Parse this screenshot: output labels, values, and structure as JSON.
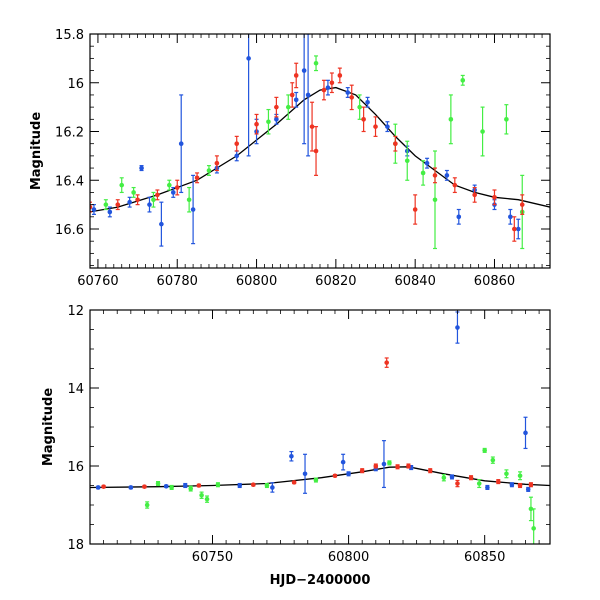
{
  "chart_data": [
    {
      "type": "scatter",
      "panel": "top",
      "xlabel": "",
      "ylabel": "Magnitude",
      "xlim": [
        60758,
        60874
      ],
      "ylim": [
        16.76,
        15.8
      ],
      "y_inverted": true,
      "x_ticks": [
        60760,
        60780,
        60800,
        60820,
        60840,
        60860
      ],
      "y_ticks": [
        15.8,
        16,
        16.2,
        16.4,
        16.6
      ],
      "grid": false,
      "legend": "none",
      "model_curve": {
        "color": "#000000",
        "x": [
          60758,
          60765,
          60775,
          60785,
          60795,
          60805,
          60812,
          60816,
          60820,
          60825,
          60830,
          60835,
          60840,
          60845,
          60850,
          60855,
          60860,
          60866,
          60874
        ],
        "y": [
          16.53,
          16.51,
          16.46,
          16.4,
          16.3,
          16.17,
          16.07,
          16.03,
          16.02,
          16.05,
          16.13,
          16.22,
          16.3,
          16.36,
          16.42,
          16.45,
          16.47,
          16.48,
          16.51
        ]
      },
      "series": [
        {
          "color": "#2255dd",
          "points": [
            {
              "x": 60759,
              "y": 16.52,
              "e": 0.02
            },
            {
              "x": 60763,
              "y": 16.53,
              "e": 0.02
            },
            {
              "x": 60768,
              "y": 16.49,
              "e": 0.02
            },
            {
              "x": 60771,
              "y": 16.35,
              "e": 0.01
            },
            {
              "x": 60773,
              "y": 16.5,
              "e": 0.03
            },
            {
              "x": 60776,
              "y": 16.58,
              "e": 0.09
            },
            {
              "x": 60779,
              "y": 16.45,
              "e": 0.02
            },
            {
              "x": 60781,
              "y": 16.25,
              "e": 0.2
            },
            {
              "x": 60784,
              "y": 16.52,
              "e": 0.14
            },
            {
              "x": 60790,
              "y": 16.35,
              "e": 0.02
            },
            {
              "x": 60795,
              "y": 16.3,
              "e": 0.02
            },
            {
              "x": 60798,
              "y": 15.9,
              "e": 0.4
            },
            {
              "x": 60800,
              "y": 16.2,
              "e": 0.05
            },
            {
              "x": 60805,
              "y": 16.15,
              "e": 0.02
            },
            {
              "x": 60810,
              "y": 16.07,
              "e": 0.03
            },
            {
              "x": 60812,
              "y": 15.95,
              "e": 0.3
            },
            {
              "x": 60813,
              "y": 16.05,
              "e": 0.25
            },
            {
              "x": 60818,
              "y": 16.02,
              "e": 0.03
            },
            {
              "x": 60823,
              "y": 16.04,
              "e": 0.02
            },
            {
              "x": 60828,
              "y": 16.08,
              "e": 0.02
            },
            {
              "x": 60833,
              "y": 16.18,
              "e": 0.02
            },
            {
              "x": 60838,
              "y": 16.28,
              "e": 0.02
            },
            {
              "x": 60843,
              "y": 16.33,
              "e": 0.02
            },
            {
              "x": 60848,
              "y": 16.38,
              "e": 0.02
            },
            {
              "x": 60851,
              "y": 16.55,
              "e": 0.03
            },
            {
              "x": 60855,
              "y": 16.44,
              "e": 0.02
            },
            {
              "x": 60860,
              "y": 16.5,
              "e": 0.02
            },
            {
              "x": 60864,
              "y": 16.55,
              "e": 0.03
            },
            {
              "x": 60866,
              "y": 16.6,
              "e": 0.04
            }
          ]
        },
        {
          "color": "#44ee44",
          "points": [
            {
              "x": 60762,
              "y": 16.5,
              "e": 0.02
            },
            {
              "x": 60766,
              "y": 16.42,
              "e": 0.03
            },
            {
              "x": 60769,
              "y": 16.45,
              "e": 0.02
            },
            {
              "x": 60774,
              "y": 16.48,
              "e": 0.03
            },
            {
              "x": 60778,
              "y": 16.42,
              "e": 0.02
            },
            {
              "x": 60783,
              "y": 16.48,
              "e": 0.05
            },
            {
              "x": 60788,
              "y": 16.36,
              "e": 0.02
            },
            {
              "x": 60803,
              "y": 16.16,
              "e": 0.05
            },
            {
              "x": 60808,
              "y": 16.1,
              "e": 0.05
            },
            {
              "x": 60815,
              "y": 15.92,
              "e": 0.03
            },
            {
              "x": 60826,
              "y": 16.1,
              "e": 0.05
            },
            {
              "x": 60835,
              "y": 16.25,
              "e": 0.08
            },
            {
              "x": 60838,
              "y": 16.32,
              "e": 0.08
            },
            {
              "x": 60842,
              "y": 16.37,
              "e": 0.05
            },
            {
              "x": 60845,
              "y": 16.48,
              "e": 0.2
            },
            {
              "x": 60849,
              "y": 16.15,
              "e": 0.1
            },
            {
              "x": 60852,
              "y": 15.99,
              "e": 0.02
            },
            {
              "x": 60857,
              "y": 16.2,
              "e": 0.1
            },
            {
              "x": 60863,
              "y": 16.15,
              "e": 0.06
            },
            {
              "x": 60867,
              "y": 16.53,
              "e": 0.15
            }
          ]
        },
        {
          "color": "#ee3322",
          "points": [
            {
              "x": 60758,
              "y": 16.51,
              "e": 0.02
            },
            {
              "x": 60765,
              "y": 16.5,
              "e": 0.02
            },
            {
              "x": 60770,
              "y": 16.48,
              "e": 0.02
            },
            {
              "x": 60775,
              "y": 16.46,
              "e": 0.02
            },
            {
              "x": 60780,
              "y": 16.43,
              "e": 0.03
            },
            {
              "x": 60785,
              "y": 16.39,
              "e": 0.02
            },
            {
              "x": 60790,
              "y": 16.33,
              "e": 0.03
            },
            {
              "x": 60795,
              "y": 16.25,
              "e": 0.03
            },
            {
              "x": 60800,
              "y": 16.17,
              "e": 0.04
            },
            {
              "x": 60805,
              "y": 16.1,
              "e": 0.04
            },
            {
              "x": 60809,
              "y": 16.05,
              "e": 0.05
            },
            {
              "x": 60810,
              "y": 15.97,
              "e": 0.05
            },
            {
              "x": 60814,
              "y": 16.18,
              "e": 0.1
            },
            {
              "x": 60815,
              "y": 16.28,
              "e": 0.1
            },
            {
              "x": 60817,
              "y": 16.03,
              "e": 0.04
            },
            {
              "x": 60819,
              "y": 16.0,
              "e": 0.04
            },
            {
              "x": 60821,
              "y": 15.97,
              "e": 0.03
            },
            {
              "x": 60824,
              "y": 16.06,
              "e": 0.05
            },
            {
              "x": 60827,
              "y": 16.15,
              "e": 0.05
            },
            {
              "x": 60830,
              "y": 16.18,
              "e": 0.04
            },
            {
              "x": 60835,
              "y": 16.25,
              "e": 0.03
            },
            {
              "x": 60840,
              "y": 16.52,
              "e": 0.06
            },
            {
              "x": 60845,
              "y": 16.38,
              "e": 0.03
            },
            {
              "x": 60850,
              "y": 16.42,
              "e": 0.03
            },
            {
              "x": 60855,
              "y": 16.46,
              "e": 0.03
            },
            {
              "x": 60860,
              "y": 16.47,
              "e": 0.03
            },
            {
              "x": 60865,
              "y": 16.6,
              "e": 0.05
            },
            {
              "x": 60867,
              "y": 16.5,
              "e": 0.04
            }
          ]
        }
      ]
    },
    {
      "type": "scatter",
      "panel": "bottom",
      "xlabel": "HJD−2400000",
      "ylabel": "Magnitude",
      "xlim": [
        60705,
        60874
      ],
      "ylim": [
        18,
        12
      ],
      "y_inverted": true,
      "x_ticks": [
        60750,
        60800,
        60850
      ],
      "y_ticks": [
        12,
        14,
        16,
        18
      ],
      "grid": false,
      "legend": "none",
      "model_curve": {
        "color": "#000000",
        "x": [
          60705,
          60730,
          60750,
          60770,
          60790,
          60805,
          60815,
          60822,
          60835,
          60850,
          60865,
          60874
        ],
        "y": [
          16.55,
          16.53,
          16.5,
          16.45,
          16.3,
          16.15,
          16.03,
          16.02,
          16.2,
          16.38,
          16.47,
          16.5
        ]
      },
      "series": [
        {
          "color": "#2255dd",
          "points": [
            {
              "x": 60708,
              "y": 16.55,
              "e": 0.03
            },
            {
              "x": 60720,
              "y": 16.55,
              "e": 0.03
            },
            {
              "x": 60733,
              "y": 16.52,
              "e": 0.03
            },
            {
              "x": 60740,
              "y": 16.5,
              "e": 0.05
            },
            {
              "x": 60760,
              "y": 16.5,
              "e": 0.05
            },
            {
              "x": 60772,
              "y": 16.55,
              "e": 0.12
            },
            {
              "x": 60779,
              "y": 15.75,
              "e": 0.12
            },
            {
              "x": 60784,
              "y": 16.2,
              "e": 0.5
            },
            {
              "x": 60798,
              "y": 15.9,
              "e": 0.2
            },
            {
              "x": 60800,
              "y": 16.2,
              "e": 0.05
            },
            {
              "x": 60810,
              "y": 16.07,
              "e": 0.05
            },
            {
              "x": 60813,
              "y": 15.95,
              "e": 0.6
            },
            {
              "x": 60823,
              "y": 16.04,
              "e": 0.05
            },
            {
              "x": 60838,
              "y": 16.28,
              "e": 0.05
            },
            {
              "x": 60840,
              "y": 12.45,
              "e": 0.4
            },
            {
              "x": 60851,
              "y": 16.55,
              "e": 0.05
            },
            {
              "x": 60860,
              "y": 16.48,
              "e": 0.05
            },
            {
              "x": 60865,
              "y": 15.15,
              "e": 0.4
            },
            {
              "x": 60866,
              "y": 16.6,
              "e": 0.05
            }
          ]
        },
        {
          "color": "#44ee44",
          "points": [
            {
              "x": 60726,
              "y": 17.0,
              "e": 0.08
            },
            {
              "x": 60730,
              "y": 16.45,
              "e": 0.05
            },
            {
              "x": 60735,
              "y": 16.55,
              "e": 0.05
            },
            {
              "x": 60742,
              "y": 16.58,
              "e": 0.06
            },
            {
              "x": 60746,
              "y": 16.75,
              "e": 0.08
            },
            {
              "x": 60748,
              "y": 16.85,
              "e": 0.08
            },
            {
              "x": 60752,
              "y": 16.48,
              "e": 0.05
            },
            {
              "x": 60770,
              "y": 16.5,
              "e": 0.05
            },
            {
              "x": 60788,
              "y": 16.36,
              "e": 0.05
            },
            {
              "x": 60815,
              "y": 15.92,
              "e": 0.05
            },
            {
              "x": 60835,
              "y": 16.3,
              "e": 0.08
            },
            {
              "x": 60848,
              "y": 16.45,
              "e": 0.1
            },
            {
              "x": 60850,
              "y": 15.6,
              "e": 0.05
            },
            {
              "x": 60853,
              "y": 15.85,
              "e": 0.08
            },
            {
              "x": 60858,
              "y": 16.2,
              "e": 0.1
            },
            {
              "x": 60863,
              "y": 16.25,
              "e": 0.1
            },
            {
              "x": 60867,
              "y": 17.1,
              "e": 0.3
            },
            {
              "x": 60868,
              "y": 17.6,
              "e": 0.5
            }
          ]
        },
        {
          "color": "#ee3322",
          "points": [
            {
              "x": 60710,
              "y": 16.53,
              "e": 0.03
            },
            {
              "x": 60725,
              "y": 16.53,
              "e": 0.03
            },
            {
              "x": 60745,
              "y": 16.5,
              "e": 0.03
            },
            {
              "x": 60765,
              "y": 16.48,
              "e": 0.03
            },
            {
              "x": 60780,
              "y": 16.42,
              "e": 0.03
            },
            {
              "x": 60795,
              "y": 16.25,
              "e": 0.03
            },
            {
              "x": 60805,
              "y": 16.12,
              "e": 0.05
            },
            {
              "x": 60810,
              "y": 16.0,
              "e": 0.05
            },
            {
              "x": 60814,
              "y": 13.35,
              "e": 0.12
            },
            {
              "x": 60818,
              "y": 16.02,
              "e": 0.05
            },
            {
              "x": 60822,
              "y": 16.0,
              "e": 0.05
            },
            {
              "x": 60830,
              "y": 16.12,
              "e": 0.05
            },
            {
              "x": 60840,
              "y": 16.45,
              "e": 0.08
            },
            {
              "x": 60845,
              "y": 16.3,
              "e": 0.05
            },
            {
              "x": 60855,
              "y": 16.4,
              "e": 0.05
            },
            {
              "x": 60863,
              "y": 16.5,
              "e": 0.05
            },
            {
              "x": 60867,
              "y": 16.48,
              "e": 0.05
            }
          ]
        }
      ]
    }
  ]
}
